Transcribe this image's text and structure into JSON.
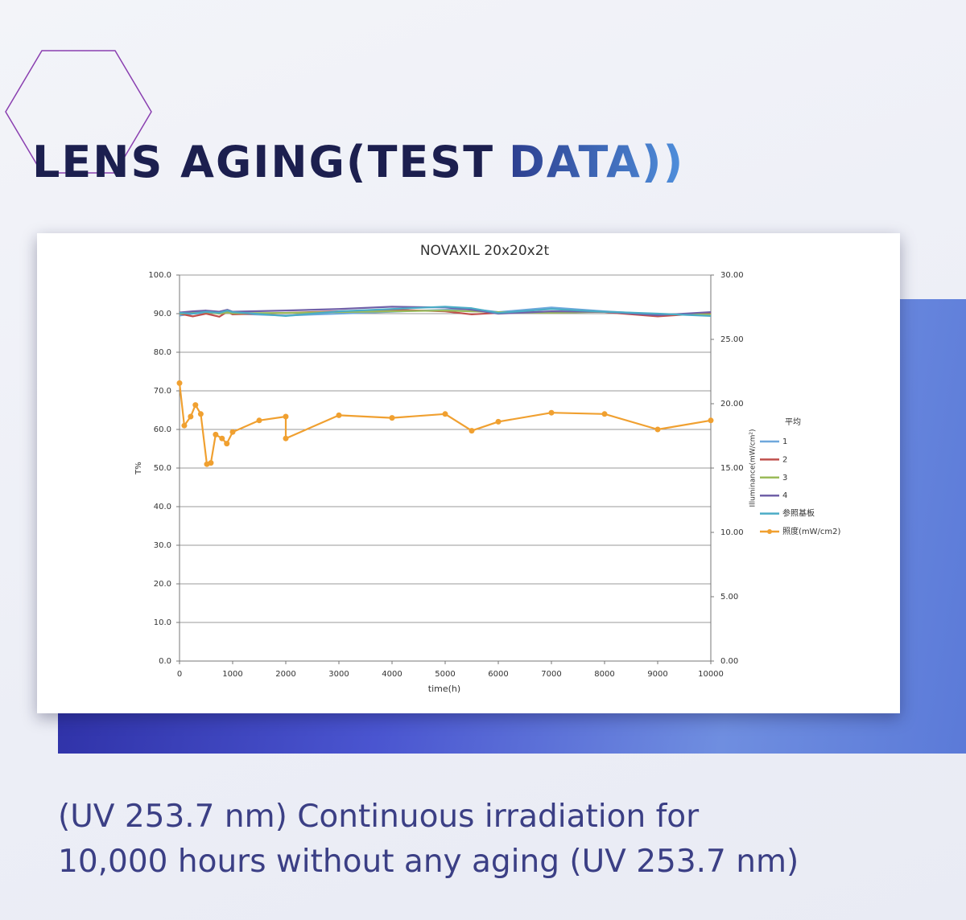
{
  "header": {
    "title_main": "LENS AGING(TEST",
    "title_accent": "DATA))"
  },
  "caption": {
    "lines": [
      "(UV 253.7 nm) Continuous irradiation for",
      "10,000 hours without any aging (UV 253.7 nm)"
    ]
  },
  "chart_data": {
    "type": "line",
    "title": "NOVAXIL  20x20x2t",
    "x_label": "time(h)",
    "y_label": "T%",
    "y2_label": "Illuminance(mW/cm²)",
    "legend_title": "平均",
    "xlim": [
      0,
      10000
    ],
    "xticks": [
      0,
      1000,
      2000,
      3000,
      4000,
      5000,
      6000,
      7000,
      8000,
      9000,
      10000
    ],
    "ylim": [
      0,
      100
    ],
    "yticks": [
      {
        "value": 0,
        "label": "0.0"
      },
      {
        "value": 10,
        "label": "10.0"
      },
      {
        "value": 20,
        "label": "20.0"
      },
      {
        "value": 30,
        "label": "30.0"
      },
      {
        "value": 40,
        "label": "40.0"
      },
      {
        "value": 50,
        "label": "50.0"
      },
      {
        "value": 60,
        "label": "60.0"
      },
      {
        "value": 70,
        "label": "70.0"
      },
      {
        "value": 80,
        "label": "80.0"
      },
      {
        "value": 90,
        "label": "90.0"
      },
      {
        "value": 100,
        "label": "100.0"
      }
    ],
    "y2lim": [
      0,
      30
    ],
    "y2ticks": [
      {
        "value": 0,
        "label": "0.00"
      },
      {
        "value": 5,
        "label": "5.00"
      },
      {
        "value": 10,
        "label": "10.00"
      },
      {
        "value": 15,
        "label": "15.00"
      },
      {
        "value": 20,
        "label": "20.00"
      },
      {
        "value": 25,
        "label": "25.00"
      },
      {
        "value": 30,
        "label": "30.00"
      }
    ],
    "grid": true,
    "series": [
      {
        "name": "1",
        "color": "#6fa8dc",
        "x": [
          0,
          250,
          500,
          750,
          900,
          1000,
          2000,
          3000,
          4000,
          5000,
          5500,
          6000,
          7000,
          8000,
          9000,
          10000
        ],
        "values": [
          89.5,
          90,
          90.2,
          90.5,
          90.8,
          90,
          89.5,
          90,
          90.5,
          91,
          91.2,
          90.4,
          91.6,
          90.6,
          89.8,
          89.6
        ]
      },
      {
        "name": "2",
        "color": "#c0504d",
        "x": [
          0,
          250,
          500,
          750,
          900,
          1000,
          2000,
          3000,
          4000,
          5000,
          5500,
          6000,
          7000,
          8000,
          9000,
          10000
        ],
        "values": [
          90,
          89.3,
          90,
          89.2,
          90.5,
          89.8,
          90.2,
          90.6,
          91,
          90.6,
          89.8,
          90.2,
          90.5,
          90.4,
          89.3,
          90.2
        ]
      },
      {
        "name": "3",
        "color": "#9bbb59",
        "x": [
          0,
          250,
          500,
          750,
          900,
          1000,
          2000,
          3000,
          4000,
          5000,
          5500,
          6000,
          7000,
          8000,
          9000,
          10000
        ],
        "values": [
          90,
          90.2,
          90.4,
          90,
          90.3,
          90.1,
          90.2,
          90.4,
          90.6,
          90.8,
          90.6,
          90.4,
          90.2,
          90.5,
          89.8,
          89.8
        ]
      },
      {
        "name": "4",
        "color": "#7060a8",
        "x": [
          0,
          250,
          500,
          750,
          900,
          1000,
          2000,
          3000,
          4000,
          5000,
          5500,
          6000,
          7000,
          8000,
          9000,
          10000
        ],
        "values": [
          90.3,
          90.6,
          90.8,
          90.5,
          91,
          90.5,
          90.8,
          91.2,
          91.8,
          91.6,
          91,
          90,
          90.6,
          90.5,
          89.6,
          90.4
        ]
      },
      {
        "name": "参照基板",
        "color": "#4bacc6",
        "x": [
          0,
          250,
          500,
          750,
          900,
          1000,
          2000,
          3000,
          4000,
          5000,
          5500,
          6000,
          7000,
          8000,
          9000,
          10000
        ],
        "values": [
          90.2,
          90,
          90.5,
          90.2,
          90.8,
          90.4,
          89.4,
          90.6,
          91.2,
          91.8,
          91.4,
          90.2,
          91.2,
          90.5,
          90,
          89.4
        ]
      },
      {
        "name": "照度(mW/cm2)",
        "color": "#f0a030",
        "axis": "y2",
        "markers": true,
        "x": [
          0,
          90,
          210,
          300,
          400,
          515,
          590,
          680,
          800,
          890,
          1000,
          1500,
          2000,
          2000,
          3000,
          4000,
          5000,
          5500,
          6000,
          7000,
          8000,
          9000,
          10000
        ],
        "values": [
          21.6,
          18.3,
          19.0,
          19.9,
          19.2,
          15.3,
          15.4,
          17.6,
          17.3,
          16.9,
          17.8,
          18.7,
          19.0,
          17.3,
          19.1,
          18.9,
          19.2,
          17.9,
          18.6,
          19.3,
          19.2,
          18.0,
          18.7
        ]
      }
    ]
  }
}
